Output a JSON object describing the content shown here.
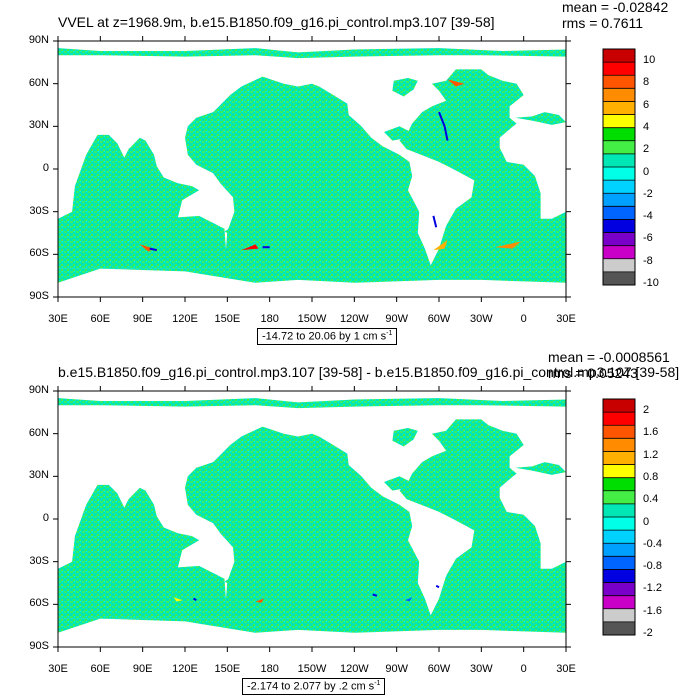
{
  "panels": [
    {
      "title": "VVEL at z=1968.9m, b.e15.B1850.f09_g16.pi_control.mp3.107 [39-58]",
      "mean_label": "mean = -0.02842",
      "rms_label": "rms = 0.7611",
      "range_label": "-14.72 to 20.06 by 1 cm s",
      "range_unit_exp": "-1",
      "colorbar": {
        "labels": [
          "10",
          "8",
          "6",
          "4",
          "2",
          "0",
          "-2",
          "-4",
          "-6",
          "-8",
          "-10"
        ],
        "colors": [
          "#c80000",
          "#ff0000",
          "#ff5500",
          "#ff8c00",
          "#ffb000",
          "#ffff00",
          "#00dd00",
          "#44ee44",
          "#00e6b4",
          "#00ffe6",
          "#00d2ff",
          "#00a0ff",
          "#0064ff",
          "#0000e0",
          "#7800c8",
          "#c800c8",
          "#cccccc",
          "#555555"
        ]
      }
    },
    {
      "title": "b.e15.B1850.f09_g16.pi_control.mp3.107 [39-58] - b.e15.B1850.f09_g16.pi_control.mp3.107 [39-58]",
      "mean_label": "mean = -0.0008561",
      "rms_label": "rms = 0.05243",
      "range_label": "-2.174 to 2.077 by .2 cm s",
      "range_unit_exp": "-1",
      "colorbar": {
        "labels": [
          "2",
          "1.6",
          "1.2",
          "0.8",
          "0.4",
          "0",
          "-0.4",
          "-0.8",
          "-1.2",
          "-1.6",
          "-2"
        ],
        "colors": [
          "#c80000",
          "#ff0000",
          "#ff5500",
          "#ff8c00",
          "#ffb000",
          "#ffff00",
          "#00dd00",
          "#44ee44",
          "#00e6b4",
          "#00ffe6",
          "#00d2ff",
          "#00a0ff",
          "#0064ff",
          "#0000e0",
          "#7800c8",
          "#c800c8",
          "#cccccc",
          "#555555"
        ]
      }
    }
  ],
  "axes": {
    "lat_labels": [
      "90N",
      "60N",
      "30N",
      "0",
      "30S",
      "60S",
      "90S"
    ],
    "lon_labels": [
      "30E",
      "60E",
      "90E",
      "120E",
      "150E",
      "180",
      "150W",
      "120W",
      "90W",
      "60W",
      "30W",
      "0",
      "30E"
    ]
  },
  "chart_data": [
    {
      "type": "heatmap",
      "title": "VVEL at z=1968.9m, b.e15.B1850.f09_g16.pi_control.mp3.107 [39-58]",
      "mean": -0.02842,
      "rms": 0.7611,
      "value_range": [
        -14.72,
        20.06
      ],
      "contour_interval": 1,
      "units": "cm s-1",
      "colorbar_levels": [
        -10,
        -8,
        -6,
        -4,
        -2,
        0,
        2,
        4,
        6,
        8,
        10
      ],
      "x_ticks": [
        "30E",
        "60E",
        "90E",
        "120E",
        "150E",
        "180",
        "150W",
        "120W",
        "90W",
        "60W",
        "30W",
        "0",
        "30E"
      ],
      "y_ticks": [
        "90N",
        "60N",
        "30N",
        "0",
        "30S",
        "60S",
        "90S"
      ],
      "xlim": [
        30,
        390
      ],
      "ylim": [
        -90,
        90
      ]
    },
    {
      "type": "heatmap",
      "title": "b.e15.B1850.f09_g16.pi_control.mp3.107 [39-58] - b.e15.B1850.f09_g16.pi_control.mp3.107 [39-58]",
      "mean": -0.0008561,
      "rms": 0.05243,
      "value_range": [
        -2.174,
        2.077
      ],
      "contour_interval": 0.2,
      "units": "cm s-1",
      "colorbar_levels": [
        -2,
        -1.6,
        -1.2,
        -0.8,
        -0.4,
        0,
        0.4,
        0.8,
        1.2,
        1.6,
        2
      ],
      "x_ticks": [
        "30E",
        "60E",
        "90E",
        "120E",
        "150E",
        "180",
        "150W",
        "120W",
        "90W",
        "60W",
        "30W",
        "0",
        "30E"
      ],
      "y_ticks": [
        "90N",
        "60N",
        "30N",
        "0",
        "30S",
        "60S",
        "90S"
      ],
      "xlim": [
        30,
        390
      ],
      "ylim": [
        -90,
        90
      ]
    }
  ]
}
